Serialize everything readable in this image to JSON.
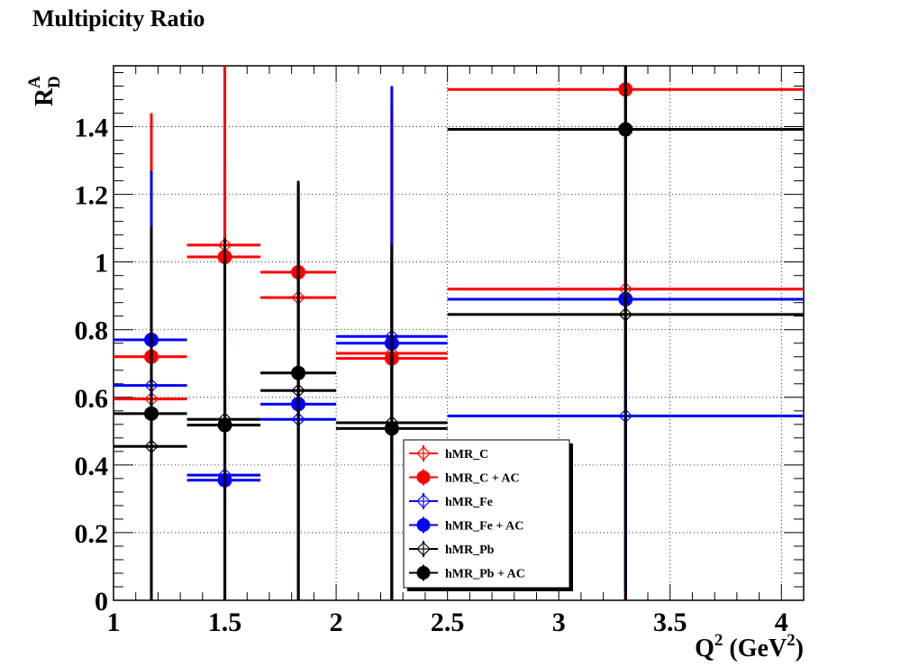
{
  "chart_data": {
    "type": "scatter",
    "title": "Multipicity Ratio",
    "ylabel": {
      "main": "R",
      "sup": "A",
      "sub": "D"
    },
    "xlabel": {
      "pre": "Q",
      "sup1": "2",
      "mid": " (GeV",
      "sup2": "2",
      "post": ")"
    },
    "xlim": [
      1,
      4.1
    ],
    "ylim": [
      0,
      1.58
    ],
    "grid": true,
    "legend_position": "bottom-center",
    "x_ticks": [
      1,
      1.5,
      2,
      2.5,
      3,
      3.5,
      4
    ],
    "x_tick_labels": [
      "1",
      "1.5",
      "2",
      "2.5",
      "3",
      "3.5",
      "4"
    ],
    "y_ticks": [
      0,
      0.2,
      0.4,
      0.6,
      0.8,
      1,
      1.2,
      1.4
    ],
    "y_tick_labels": [
      "0",
      "0.2",
      "0.4",
      "0.6",
      "0.8",
      "1",
      "1.2",
      "1.4"
    ],
    "bins": [
      [
        1.0,
        1.33
      ],
      [
        1.33,
        1.66
      ],
      [
        1.66,
        2.0
      ],
      [
        2.0,
        2.5
      ],
      [
        2.5,
        4.1
      ]
    ],
    "series": [
      {
        "name": "hMR_C",
        "color": "#ff0000",
        "marker": "open-diamond",
        "x": [
          1.17,
          1.5,
          1.83,
          2.25,
          3.3
        ],
        "y": [
          0.595,
          1.05,
          0.895,
          0.73,
          0.92
        ],
        "yerr_low": [
          0.595,
          1.05,
          0.895,
          0.73,
          0.92
        ],
        "yerr_high": [
          0.595,
          0.53,
          0.34,
          0.73,
          0.23
        ]
      },
      {
        "name": "hMR_C + AC",
        "color": "#ff0000",
        "marker": "filled-circle",
        "x": [
          1.17,
          1.5,
          1.83,
          2.25,
          3.3
        ],
        "y": [
          0.72,
          1.015,
          0.97,
          0.715,
          1.51
        ],
        "yerr_low": [
          0.72,
          0.28,
          0.97,
          0.715,
          1.51
        ],
        "yerr_high": [
          0.72,
          0.27,
          0.265,
          0.715,
          0.07
        ]
      },
      {
        "name": "hMR_Fe",
        "color": "#0000ff",
        "marker": "open-diamond",
        "x": [
          1.17,
          1.5,
          1.83,
          2.25,
          3.3
        ],
        "y": [
          0.635,
          0.37,
          0.535,
          0.78,
          0.545
        ],
        "yerr_low": [
          0.635,
          0.37,
          0.535,
          0.78,
          0.52
        ],
        "yerr_high": [
          0.635,
          0.37,
          0.535,
          0.225,
          0.13
        ]
      },
      {
        "name": "hMR_Fe + AC",
        "color": "#0000ff",
        "marker": "filled-circle",
        "x": [
          1.17,
          1.5,
          1.83,
          2.25,
          3.3
        ],
        "y": [
          0.77,
          0.355,
          0.58,
          0.76,
          0.89
        ],
        "yerr_low": [
          0.77,
          0.08,
          0.58,
          0.76,
          0.86
        ],
        "yerr_high": [
          0.16,
          0.355,
          0.58,
          0.76,
          0.04
        ]
      },
      {
        "name": "hMR_Pb",
        "color": "#000000",
        "marker": "open-diamond",
        "x": [
          1.17,
          1.5,
          1.83,
          2.25,
          3.3
        ],
        "y": [
          0.455,
          0.535,
          0.62,
          0.525,
          0.845
        ],
        "yerr_low": [
          0.075,
          0.535,
          0.62,
          0.525,
          0.845
        ],
        "yerr_high": [
          0.455,
          0.535,
          0.62,
          0.525,
          0.845
        ]
      },
      {
        "name": "hMR_Pb + AC",
        "color": "#000000",
        "marker": "filled-circle",
        "x": [
          1.17,
          1.5,
          1.83,
          2.25,
          3.3
        ],
        "y": [
          0.552,
          0.518,
          0.672,
          0.508,
          1.392
        ],
        "yerr_low": [
          0.552,
          0.518,
          0.55,
          0.195,
          0.72
        ],
        "yerr_high": [
          0.552,
          0.12,
          0.545,
          0.508,
          0.188
        ]
      }
    ]
  }
}
